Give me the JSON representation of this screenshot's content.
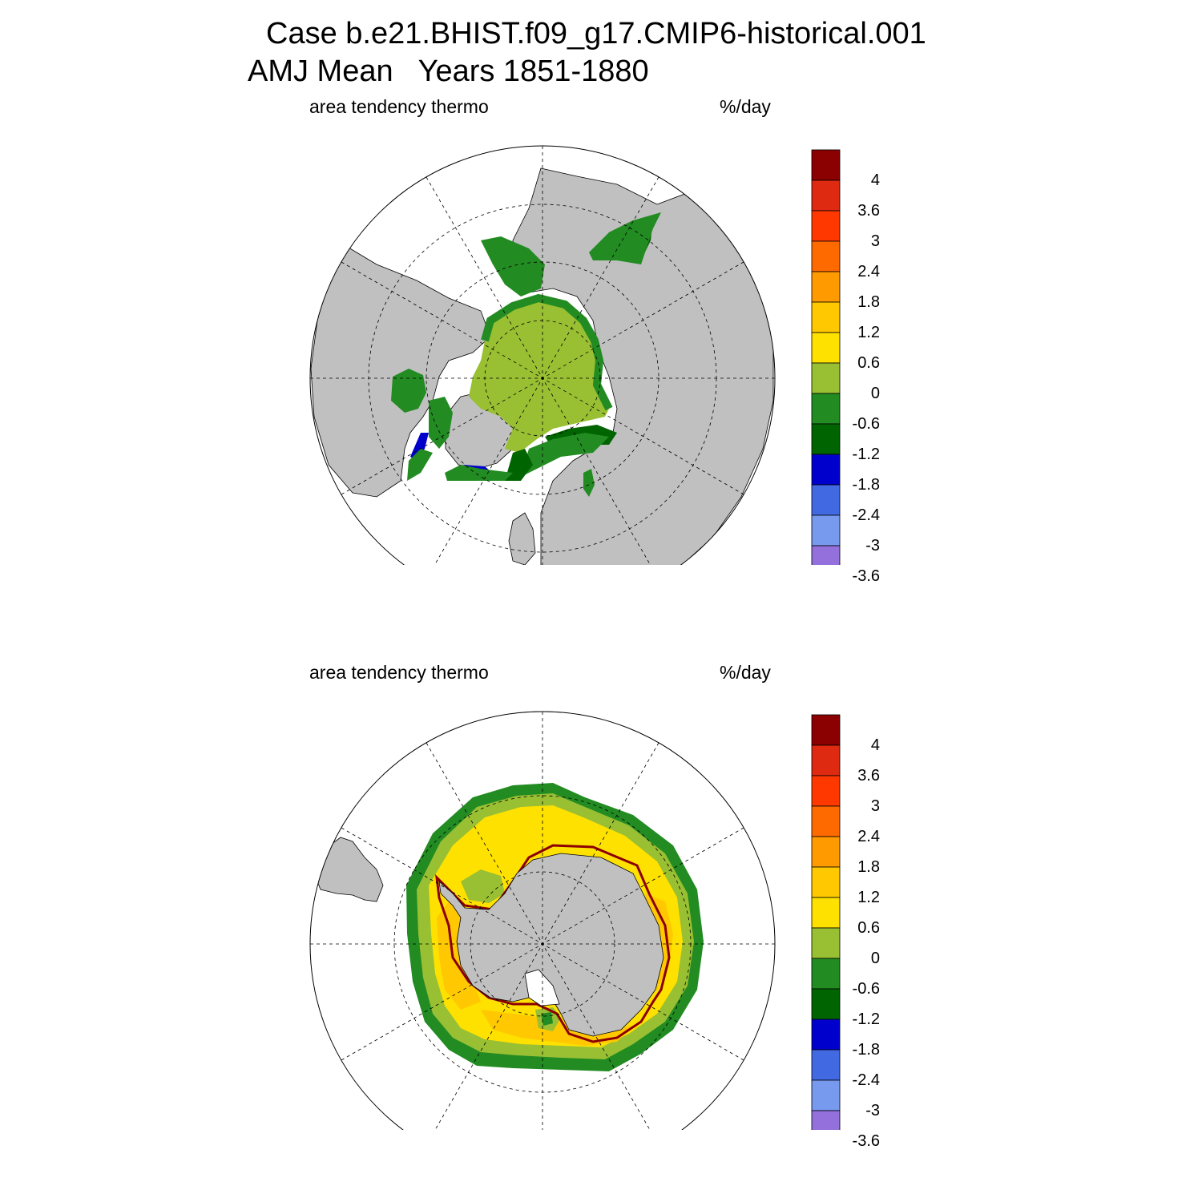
{
  "title": {
    "line1": "Case b.e21.BHIST.f09_g17.CMIP6-historical.001",
    "line2": "AMJ Mean   Years 1851-1880"
  },
  "panels": [
    {
      "id": "north",
      "hemisphere": "Arctic",
      "left_label": "area tendency thermo",
      "right_label": "%/day"
    },
    {
      "id": "south",
      "hemisphere": "Antarctic",
      "left_label": "area tendency thermo",
      "right_label": "%/day"
    }
  ],
  "colorbar": {
    "labels": [
      "4",
      "3.6",
      "3",
      "2.4",
      "1.8",
      "1.2",
      "0.6",
      "0",
      "-0.6",
      "-1.2",
      "-1.8",
      "-2.4",
      "-3",
      "-3.6"
    ],
    "colors": [
      "#8B0000",
      "#DD2A10",
      "#FF3800",
      "#FF6A00",
      "#FF9A00",
      "#FFC800",
      "#FFE100",
      "#99BF33",
      "#228B22",
      "#006400",
      "#0000CD",
      "#4169E1",
      "#7799EE",
      "#9370DB",
      "#E575E0"
    ]
  },
  "map_colors": {
    "land": "#C0C0C0",
    "ocean": "#FFFFFF",
    "light_green": "#99BF33",
    "green": "#228B22",
    "dark_green": "#006400",
    "blue": "#0000CD",
    "yellow": "#FFE100",
    "gold": "#FFC800",
    "dark_red": "#8B0000"
  }
}
